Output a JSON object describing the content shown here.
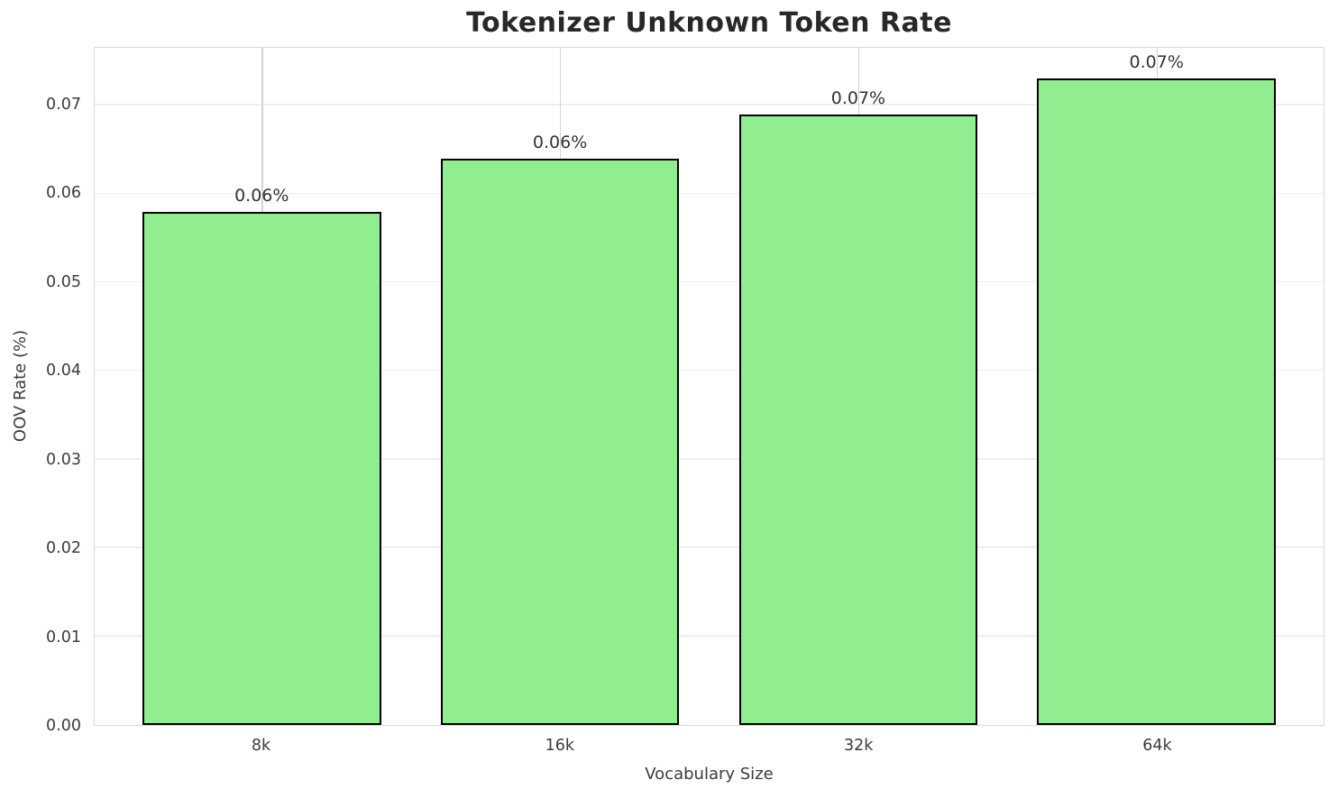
{
  "title": "Tokenizer Unknown Token Rate",
  "chart_data": {
    "type": "bar",
    "title": "Tokenizer Unknown Token Rate",
    "categories": [
      "8k",
      "16k",
      "32k",
      "64k"
    ],
    "values": [
      0.058,
      0.064,
      0.069,
      0.073
    ],
    "bar_value_labels": [
      "0.06%",
      "0.06%",
      "0.07%",
      "0.07%"
    ],
    "xlabel": "Vocabulary Size",
    "ylabel": "OOV Rate (%)",
    "ylim": [
      0,
      0.0765
    ],
    "yticks": [
      0,
      0.01,
      0.02,
      0.03,
      0.04,
      0.05,
      0.06,
      0.07
    ],
    "ytick_labels": [
      "0.00",
      "0.01",
      "0.02",
      "0.03",
      "0.04",
      "0.05",
      "0.06",
      "0.07"
    ],
    "grid": true,
    "legend_position": "none",
    "bar_width_data_units": 0.8,
    "colors": {
      "bar_fill": "#90EE90",
      "bar_edge": "#000000",
      "hgrid": "#eeeeee",
      "vgrid": "#d4d4d4",
      "spine": "#d9d9d9",
      "title_text": "#282828",
      "tick_text": "#3c3c3c",
      "background": "#ffffff"
    }
  }
}
